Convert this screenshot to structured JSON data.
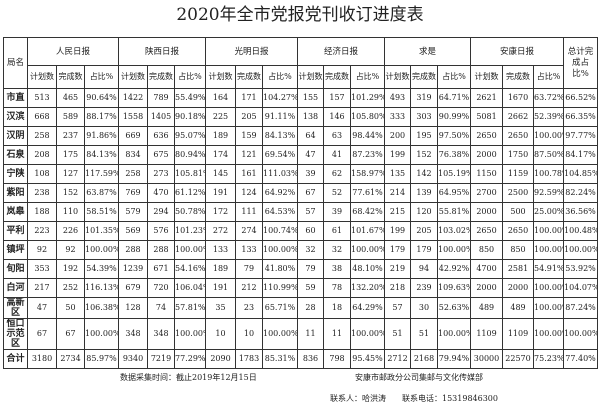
{
  "title": "2020年全市党报党刊收订进度表",
  "header": {
    "region_label": "局名",
    "groups": [
      "人民日报",
      "陕西日报",
      "光明日报",
      "经济日报",
      "求是",
      "安康日报"
    ],
    "total_label": "总计完成占比%",
    "sub": [
      "计划数",
      "完成数",
      "占比%"
    ]
  },
  "rows": [
    {
      "name": "市直",
      "v": [
        "513",
        "465",
        "90.64%",
        "1422",
        "789",
        "55.49%",
        "164",
        "171",
        "104.27%",
        "155",
        "157",
        "101.29%",
        "493",
        "319",
        "64.71%",
        "2621",
        "1670",
        "63.72%",
        "66.52%"
      ]
    },
    {
      "name": "汉滨",
      "v": [
        "668",
        "589",
        "88.17%",
        "1558",
        "1405",
        "90.18%",
        "225",
        "205",
        "91.11%",
        "138",
        "146",
        "105.80%",
        "333",
        "303",
        "90.99%",
        "5081",
        "2662",
        "52.39%",
        "66.35%"
      ]
    },
    {
      "name": "汉阴",
      "v": [
        "258",
        "237",
        "91.86%",
        "669",
        "636",
        "95.07%",
        "189",
        "159",
        "84.13%",
        "64",
        "63",
        "98.44%",
        "200",
        "195",
        "97.50%",
        "2650",
        "2650",
        "100.00%",
        "97.77%"
      ]
    },
    {
      "name": "石泉",
      "v": [
        "208",
        "175",
        "84.13%",
        "834",
        "675",
        "80.94%",
        "174",
        "121",
        "69.54%",
        "47",
        "41",
        "87.23%",
        "199",
        "152",
        "76.38%",
        "2000",
        "1750",
        "87.50%",
        "84.17%"
      ]
    },
    {
      "name": "宁陕",
      "v": [
        "108",
        "127",
        "117.59%",
        "258",
        "273",
        "105.81%",
        "145",
        "161",
        "111.03%",
        "39",
        "62",
        "158.97%",
        "135",
        "142",
        "105.19%",
        "1150",
        "1159",
        "100.78%",
        "104.85%"
      ]
    },
    {
      "name": "紫阳",
      "v": [
        "238",
        "152",
        "63.87%",
        "769",
        "470",
        "61.12%",
        "191",
        "124",
        "64.92%",
        "67",
        "52",
        "77.61%",
        "214",
        "139",
        "64.95%",
        "2700",
        "2500",
        "92.59%",
        "82.24%"
      ]
    },
    {
      "name": "岚皋",
      "v": [
        "188",
        "110",
        "58.51%",
        "579",
        "294",
        "50.78%",
        "172",
        "111",
        "64.53%",
        "57",
        "39",
        "68.42%",
        "215",
        "120",
        "55.81%",
        "2000",
        "500",
        "25.00%",
        "36.56%"
      ]
    },
    {
      "name": "平利",
      "v": [
        "223",
        "226",
        "101.35%",
        "569",
        "576",
        "101.23%",
        "272",
        "274",
        "100.74%",
        "60",
        "61",
        "101.67%",
        "199",
        "205",
        "103.02%",
        "2650",
        "2650",
        "100.00%",
        "100.48%"
      ]
    },
    {
      "name": "镇坪",
      "v": [
        "92",
        "92",
        "100.00%",
        "288",
        "288",
        "100.00%",
        "133",
        "133",
        "100.00%",
        "32",
        "32",
        "100.00%",
        "179",
        "179",
        "100.00%",
        "850",
        "850",
        "100.00%",
        "100.00%"
      ]
    },
    {
      "name": "旬阳",
      "v": [
        "353",
        "192",
        "54.39%",
        "1239",
        "671",
        "54.16%",
        "189",
        "79",
        "41.80%",
        "79",
        "38",
        "48.10%",
        "219",
        "94",
        "42.92%",
        "4700",
        "2581",
        "54.91%",
        "53.92%"
      ]
    },
    {
      "name": "白河",
      "v": [
        "217",
        "252",
        "116.13%",
        "679",
        "720",
        "106.04%",
        "191",
        "212",
        "110.99%",
        "59",
        "78",
        "132.20%",
        "218",
        "239",
        "109.63%",
        "2000",
        "2000",
        "100.00%",
        "104.07%"
      ]
    },
    {
      "name": "高新区",
      "v": [
        "47",
        "50",
        "106.38%",
        "128",
        "74",
        "57.81%",
        "35",
        "23",
        "65.71%",
        "28",
        "18",
        "64.29%",
        "57",
        "30",
        "52.63%",
        "489",
        "489",
        "100.00%",
        "87.24%"
      ]
    },
    {
      "name": "恒口示范区",
      "v": [
        "67",
        "67",
        "100.00%",
        "348",
        "348",
        "100.00%",
        "10",
        "10",
        "100.00%",
        "11",
        "11",
        "100.00%",
        "51",
        "51",
        "100.00%",
        "1109",
        "1109",
        "100.00%",
        "100.00%"
      ]
    },
    {
      "name": "合计",
      "v": [
        "3180",
        "2734",
        "85.97%",
        "9340",
        "7219",
        "77.29%",
        "2090",
        "1783",
        "85.31%",
        "836",
        "798",
        "95.45%",
        "2712",
        "2168",
        "79.94%",
        "30000",
        "22570",
        "75.23%",
        "77.40%"
      ]
    }
  ],
  "footer": {
    "collection_time": "数据采集时间：截止2019年12月15日",
    "department": "安康市邮政分公司集邮与文化传媒部",
    "contact": "联系人：哈洪涛　　联系电话：15319846300"
  }
}
